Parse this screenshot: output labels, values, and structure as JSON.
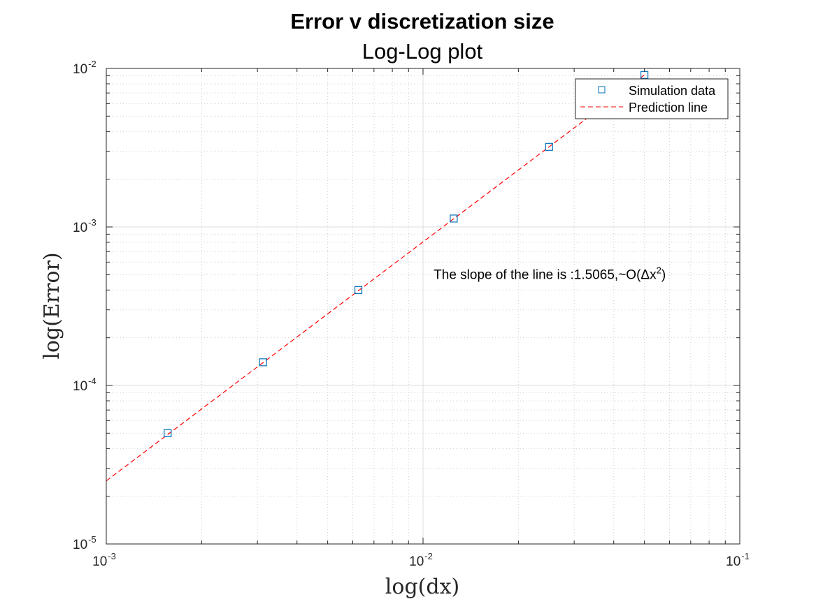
{
  "chart_data": {
    "type": "scatter",
    "title": "Error v discretization size",
    "subtitle": "Log-Log plot",
    "xlabel": "log(dx)",
    "ylabel": "log(Error)",
    "xscale": "log",
    "yscale": "log",
    "xlim": [
      0.001,
      0.1
    ],
    "ylim": [
      1e-05,
      0.01
    ],
    "grid": true,
    "minor_grid": true,
    "x_ticks": [
      {
        "base": "10",
        "exp": "-3",
        "value": 0.001
      },
      {
        "base": "10",
        "exp": "-2",
        "value": 0.01
      },
      {
        "base": "10",
        "exp": "-1",
        "value": 0.1
      }
    ],
    "y_ticks": [
      {
        "base": "10",
        "exp": "-5",
        "value": 1e-05
      },
      {
        "base": "10",
        "exp": "-4",
        "value": 0.0001
      },
      {
        "base": "10",
        "exp": "-3",
        "value": 0.001
      },
      {
        "base": "10",
        "exp": "-2",
        "value": 0.01
      }
    ],
    "series": [
      {
        "name": "Simulation data",
        "kind": "markers",
        "marker": "square",
        "color": "#0072BD",
        "x": [
          0.0015625,
          0.003125,
          0.00625,
          0.0125,
          0.025,
          0.05
        ],
        "y": [
          5e-05,
          0.00014,
          0.0004,
          0.00113,
          0.0032,
          0.0091
        ]
      },
      {
        "name": "Prediction line",
        "kind": "line",
        "style": "dashed",
        "color": "#FF0000",
        "x": [
          0.001,
          0.05
        ],
        "y": [
          2.5e-05,
          0.0091
        ]
      }
    ],
    "legend": {
      "position": "top-right"
    },
    "annotation": {
      "prefix": "The slope of the line is :1.5065,~O(",
      "symbol": "Δx",
      "superscript": "2",
      "suffix": ")",
      "x": 0.0108,
      "y": 0.00047
    }
  }
}
